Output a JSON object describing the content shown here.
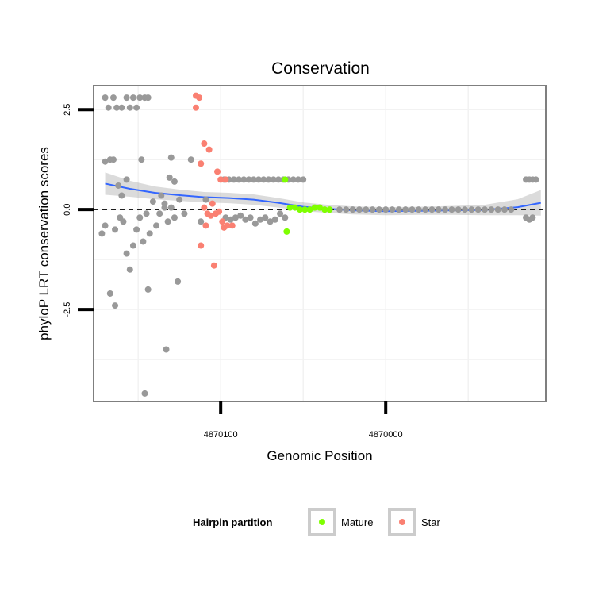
{
  "chart_data": {
    "type": "scatter",
    "title": "Conservation",
    "xlabel": "Genomic Position",
    "ylabel": "phyloP LRT conservation scores",
    "xlim": [
      4870177,
      4869903
    ],
    "ylim": [
      -4.8,
      3.1
    ],
    "x_ticks": [
      {
        "value": 4870100,
        "label": "4870100"
      },
      {
        "value": 4870000,
        "label": "4870000"
      }
    ],
    "y_ticks": [
      {
        "value": 2.5,
        "label": "2.5"
      },
      {
        "value": 0.0,
        "label": "0.0"
      },
      {
        "value": -2.5,
        "label": "-2.5"
      }
    ],
    "reference_line": {
      "y": 0,
      "style": "dashed"
    },
    "legend": {
      "title": "Hairpin partition",
      "position": "bottom",
      "entries": [
        {
          "label": "Mature",
          "color": "#7fff00"
        },
        {
          "label": "Star",
          "color": "#fa8072"
        }
      ]
    },
    "series": [
      {
        "name": "Other",
        "color": "#999999",
        "points": [
          [
            4870170,
            2.8
          ],
          [
            4870168,
            2.55
          ],
          [
            4870165,
            2.8
          ],
          [
            4870163,
            2.55
          ],
          [
            4870160,
            2.55
          ],
          [
            4870157,
            2.8
          ],
          [
            4870155,
            2.55
          ],
          [
            4870153,
            2.8
          ],
          [
            4870151,
            2.55
          ],
          [
            4870149,
            2.8
          ],
          [
            4870146,
            2.8
          ],
          [
            4870144,
            2.8
          ],
          [
            4870170,
            1.2
          ],
          [
            4870167,
            1.25
          ],
          [
            4870165,
            1.25
          ],
          [
            4870162,
            0.6
          ],
          [
            4870160,
            0.35
          ],
          [
            4870157,
            0.75
          ],
          [
            4870148,
            1.25
          ],
          [
            4870130,
            1.3
          ],
          [
            4870118,
            1.25
          ],
          [
            4870172,
            -0.6
          ],
          [
            4870170,
            -0.4
          ],
          [
            4870164,
            -0.5
          ],
          [
            4870161,
            -0.2
          ],
          [
            4870159,
            -0.3
          ],
          [
            4870157,
            -1.1
          ],
          [
            4870155,
            -1.5
          ],
          [
            4870153,
            -0.9
          ],
          [
            4870151,
            -0.5
          ],
          [
            4870149,
            -0.2
          ],
          [
            4870147,
            -0.8
          ],
          [
            4870145,
            -0.1
          ],
          [
            4870143,
            -0.6
          ],
          [
            4870141,
            0.2
          ],
          [
            4870139,
            -0.4
          ],
          [
            4870137,
            -0.1
          ],
          [
            4870134,
            0.15
          ],
          [
            4870132,
            -0.3
          ],
          [
            4870130,
            0.05
          ],
          [
            4870128,
            -0.2
          ],
          [
            4870126,
            -1.8
          ],
          [
            4870167,
            -2.1
          ],
          [
            4870164,
            -2.4
          ],
          [
            4870144,
            -2.0
          ],
          [
            4870133,
            -3.5
          ],
          [
            4870146,
            -4.6
          ],
          [
            4870136,
            0.35
          ],
          [
            4870134,
            0.05
          ],
          [
            4870131,
            0.8
          ],
          [
            4870128,
            0.7
          ],
          [
            4870125,
            0.25
          ],
          [
            4870122,
            -0.1
          ],
          [
            4870112,
            -0.3
          ],
          [
            4870109,
            0.25
          ],
          [
            4870098,
            0.75
          ],
          [
            4870095,
            0.75
          ],
          [
            4870092,
            0.75
          ],
          [
            4870089,
            0.75
          ],
          [
            4870086,
            0.75
          ],
          [
            4870083,
            0.75
          ],
          [
            4870080,
            0.75
          ],
          [
            4870077,
            0.75
          ],
          [
            4870074,
            0.75
          ],
          [
            4870071,
            0.75
          ],
          [
            4870068,
            0.75
          ],
          [
            4870065,
            0.75
          ],
          [
            4870062,
            0.75
          ],
          [
            4870059,
            0.75
          ],
          [
            4870056,
            0.75
          ],
          [
            4870053,
            0.75
          ],
          [
            4870050,
            0.75
          ],
          [
            4870097,
            -0.2
          ],
          [
            4870094,
            -0.25
          ],
          [
            4870091,
            -0.2
          ],
          [
            4870088,
            -0.15
          ],
          [
            4870085,
            -0.25
          ],
          [
            4870082,
            -0.2
          ],
          [
            4870079,
            -0.35
          ],
          [
            4870076,
            -0.25
          ],
          [
            4870073,
            -0.2
          ],
          [
            4870070,
            -0.3
          ],
          [
            4870067,
            -0.25
          ],
          [
            4870064,
            -0.1
          ],
          [
            4870061,
            -0.2
          ],
          [
            4870028,
            0.0
          ],
          [
            4870024,
            0.0
          ],
          [
            4870020,
            0.0
          ],
          [
            4870016,
            0.0
          ],
          [
            4870012,
            0.0
          ],
          [
            4870008,
            0.0
          ],
          [
            4870004,
            0.0
          ],
          [
            4870000,
            0.0
          ],
          [
            4869996,
            0.0
          ],
          [
            4869992,
            0.0
          ],
          [
            4869988,
            0.0
          ],
          [
            4869984,
            0.0
          ],
          [
            4869980,
            0.0
          ],
          [
            4869976,
            0.0
          ],
          [
            4869972,
            0.0
          ],
          [
            4869968,
            0.0
          ],
          [
            4869964,
            0.0
          ],
          [
            4869960,
            0.0
          ],
          [
            4869956,
            0.0
          ],
          [
            4869952,
            0.0
          ],
          [
            4869948,
            0.0
          ],
          [
            4869944,
            0.0
          ],
          [
            4869940,
            0.0
          ],
          [
            4869936,
            0.0
          ],
          [
            4869932,
            0.0
          ],
          [
            4869928,
            0.0
          ],
          [
            4869924,
            0.0
          ],
          [
            4869915,
            -0.2
          ],
          [
            4869913,
            -0.25
          ],
          [
            4869911,
            -0.2
          ],
          [
            4869915,
            0.75
          ],
          [
            4869913,
            0.75
          ],
          [
            4869911,
            0.75
          ],
          [
            4869909,
            0.75
          ]
        ]
      },
      {
        "name": "Star",
        "color": "#fa8072",
        "points": [
          [
            4870115,
            2.85
          ],
          [
            4870113,
            2.8
          ],
          [
            4870115,
            2.55
          ],
          [
            4870110,
            1.65
          ],
          [
            4870107,
            1.5
          ],
          [
            4870112,
            1.15
          ],
          [
            4870102,
            0.95
          ],
          [
            4870100,
            0.75
          ],
          [
            4870097,
            0.75
          ],
          [
            4870110,
            0.05
          ],
          [
            4870108,
            -0.1
          ],
          [
            4870105,
            0.15
          ],
          [
            4870103,
            -0.1
          ],
          [
            4870101,
            -0.05
          ],
          [
            4870099,
            -0.3
          ],
          [
            4870098,
            -0.45
          ],
          [
            4870096,
            -0.4
          ],
          [
            4870093,
            -0.4
          ],
          [
            4870109,
            -0.4
          ],
          [
            4870106,
            -0.15
          ],
          [
            4870112,
            -0.9
          ],
          [
            4870104,
            -1.4
          ]
        ]
      },
      {
        "name": "Mature",
        "color": "#7fff00",
        "points": [
          [
            4870061,
            0.75
          ],
          [
            4870060,
            -0.55
          ],
          [
            4870058,
            0.05
          ],
          [
            4870055,
            0.05
          ],
          [
            4870052,
            0.0
          ],
          [
            4870049,
            0.0
          ],
          [
            4870046,
            0.0
          ],
          [
            4870043,
            0.05
          ],
          [
            4870040,
            0.05
          ],
          [
            4870037,
            0.0
          ],
          [
            4870034,
            0.0
          ]
        ]
      }
    ],
    "smooth": {
      "color": "#3366ff",
      "x": [
        4870170,
        4870155,
        4870140,
        4870125,
        4870110,
        4870095,
        4870080,
        4870065,
        4870050,
        4870035,
        4870020,
        4870000,
        4869980,
        4869960,
        4869940,
        4869920,
        4869906
      ],
      "y": [
        0.65,
        0.52,
        0.42,
        0.36,
        0.31,
        0.29,
        0.25,
        0.17,
        0.07,
        0.02,
        -0.02,
        -0.04,
        -0.03,
        -0.02,
        -0.01,
        0.06,
        0.17
      ],
      "se": [
        0.28,
        0.2,
        0.16,
        0.14,
        0.13,
        0.13,
        0.13,
        0.12,
        0.11,
        0.1,
        0.1,
        0.1,
        0.1,
        0.11,
        0.13,
        0.2,
        0.32
      ]
    }
  }
}
